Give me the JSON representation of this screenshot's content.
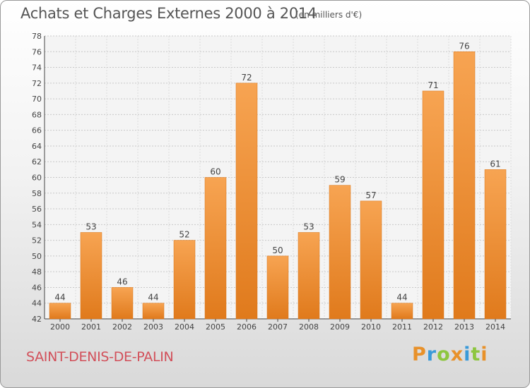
{
  "chart_data": {
    "type": "bar",
    "title": "Achats et Charges Externes 2000 à 2014",
    "unit_note": "(en milliers d'€)",
    "categories": [
      "2000",
      "2001",
      "2002",
      "2003",
      "2004",
      "2005",
      "2006",
      "2007",
      "2008",
      "2009",
      "2010",
      "2011",
      "2012",
      "2013",
      "2014"
    ],
    "values": [
      44,
      53,
      46,
      44,
      52,
      60,
      72,
      50,
      53,
      59,
      57,
      44,
      71,
      76,
      61
    ],
    "ylim": [
      42,
      78
    ],
    "y_ticks": [
      42,
      44,
      46,
      48,
      50,
      52,
      54,
      56,
      58,
      60,
      62,
      64,
      66,
      68,
      70,
      72,
      74,
      76,
      78
    ],
    "grid": true,
    "bar_color": "#f08a2c"
  },
  "place_name": "SAINT-DENIS-DE-PALIN",
  "brand": {
    "name": "Proxiti",
    "letters": [
      "P",
      "r",
      "o",
      "x",
      "i",
      "t",
      "i"
    ],
    "colors": [
      "#e8912a",
      "#3a9ad9",
      "#8dc63f",
      "#e8912a",
      "#3a9ad9",
      "#8dc63f",
      "#e8912a"
    ]
  }
}
